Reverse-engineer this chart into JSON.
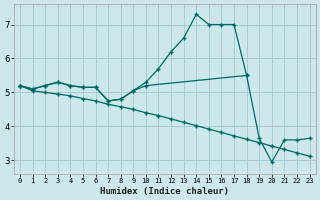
{
  "xlabel": "Humidex (Indice chaleur)",
  "bg_color": "#cce8ea",
  "grid_color": "#aacdd2",
  "line_color": "#006868",
  "xlim": [
    -0.5,
    23.5
  ],
  "ylim": [
    2.6,
    7.6
  ],
  "yticks": [
    3,
    4,
    5,
    6,
    7
  ],
  "xticks": [
    0,
    1,
    2,
    3,
    4,
    5,
    6,
    7,
    8,
    9,
    10,
    11,
    12,
    13,
    14,
    15,
    16,
    17,
    18,
    19,
    20,
    21,
    22,
    23
  ],
  "line1_x": [
    0,
    1,
    2,
    3,
    4,
    5,
    6,
    7,
    8,
    9,
    10,
    11,
    12,
    13,
    14,
    15,
    16,
    17,
    18
  ],
  "line1_y": [
    5.2,
    5.1,
    5.2,
    5.3,
    5.2,
    5.15,
    5.15,
    4.75,
    4.8,
    5.05,
    5.3,
    5.7,
    6.2,
    6.6,
    7.3,
    7.0,
    7.0,
    7.0,
    5.5
  ],
  "line2_x": [
    0,
    1,
    2,
    3,
    4,
    5,
    6,
    7,
    8,
    9,
    10,
    18,
    19,
    20,
    21,
    22,
    23
  ],
  "line2_y": [
    5.2,
    5.1,
    5.2,
    5.3,
    5.2,
    5.15,
    5.15,
    4.75,
    4.8,
    5.05,
    5.2,
    5.5,
    3.65,
    2.95,
    3.6,
    3.6,
    3.65
  ],
  "line3_x": [
    0,
    1,
    2,
    3,
    4,
    5,
    6,
    7,
    8,
    9,
    10,
    11,
    12,
    13,
    14,
    15,
    16,
    17,
    18,
    19,
    20,
    21,
    22,
    23
  ],
  "line3_y": [
    5.2,
    5.05,
    5.0,
    4.95,
    4.9,
    4.82,
    4.75,
    4.65,
    4.58,
    4.5,
    4.4,
    4.32,
    4.22,
    4.12,
    4.02,
    3.92,
    3.82,
    3.72,
    3.62,
    3.52,
    3.42,
    3.32,
    3.22,
    3.12
  ]
}
